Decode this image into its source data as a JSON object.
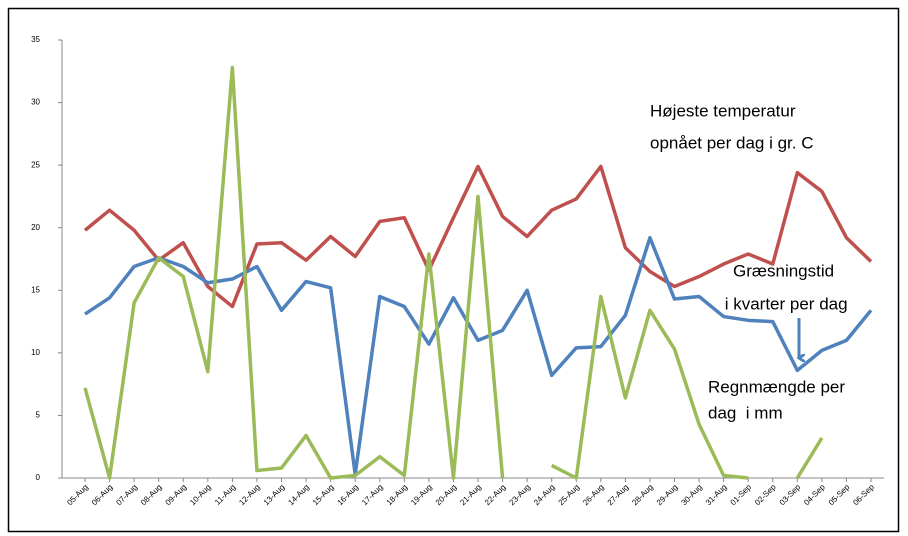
{
  "chart_data": {
    "type": "line",
    "categories": [
      "05-Aug",
      "06-Aug",
      "07-Aug",
      "08-Aug",
      "09-Aug",
      "10-Aug",
      "11-Aug",
      "12-Aug",
      "13-Aug",
      "14-Aug",
      "15-Aug",
      "16-Aug",
      "17-Aug",
      "18-Aug",
      "19-Aug",
      "20-Aug",
      "21-Aug",
      "22-Aug",
      "23-Aug",
      "24-Aug",
      "25-Aug",
      "26-Aug",
      "27-Aug",
      "28-Aug",
      "29-Aug",
      "30-Aug",
      "31-Aug",
      "01-Sep",
      "02-Sep",
      "03-Sep",
      "04-Sep",
      "05-Sep",
      "06-Sep"
    ],
    "series": [
      {
        "color": "#c0504d",
        "values": [
          19.8,
          21.4,
          19.8,
          17.4,
          18.8,
          15.3,
          13.7,
          18.7,
          18.8,
          17.4,
          19.3,
          17.7,
          20.5,
          20.8,
          16.6,
          20.8,
          24.9,
          20.9,
          19.3,
          21.4,
          22.3,
          24.9,
          18.4,
          16.5,
          15.3,
          16.1,
          17.1,
          17.9,
          17.1,
          24.4,
          22.9,
          19.2,
          17.3
        ]
      },
      {
        "color": "#4f81bd",
        "values": [
          13.1,
          14.4,
          16.9,
          17.6,
          16.9,
          15.6,
          15.9,
          16.9,
          13.4,
          15.7,
          15.2,
          0.3,
          14.5,
          13.7,
          10.7,
          14.4,
          11.0,
          11.8,
          15.0,
          8.2,
          10.4,
          10.5,
          13.0,
          19.2,
          14.3,
          14.5,
          12.9,
          12.6,
          12.5,
          8.6,
          10.2,
          11.0,
          13.4
        ]
      },
      {
        "color": "#9bbb59",
        "values": [
          7.2,
          0,
          14.0,
          17.6,
          16.1,
          8.5,
          32.8,
          0.6,
          0.8,
          3.4,
          0,
          0.2,
          1.7,
          0.2,
          17.9,
          0,
          22.5,
          0,
          null,
          1.0,
          0,
          14.5,
          6.4,
          13.4,
          10.3,
          4.3,
          0.2,
          0,
          null,
          0,
          3.2,
          null,
          null
        ]
      }
    ],
    "annotations": [
      {
        "lines": [
          "Højeste temperatur",
          "opnået per dag i gr. C"
        ]
      },
      {
        "lines": [
          "Græsningstid",
          " i kvarter per dag"
        ]
      },
      {
        "lines": [
          "Regnmængde per",
          "dag  i mm"
        ]
      }
    ],
    "ylim": [
      0,
      35
    ],
    "yticks": [
      0,
      5,
      10,
      15,
      20,
      25,
      30,
      35
    ],
    "grid": false
  }
}
